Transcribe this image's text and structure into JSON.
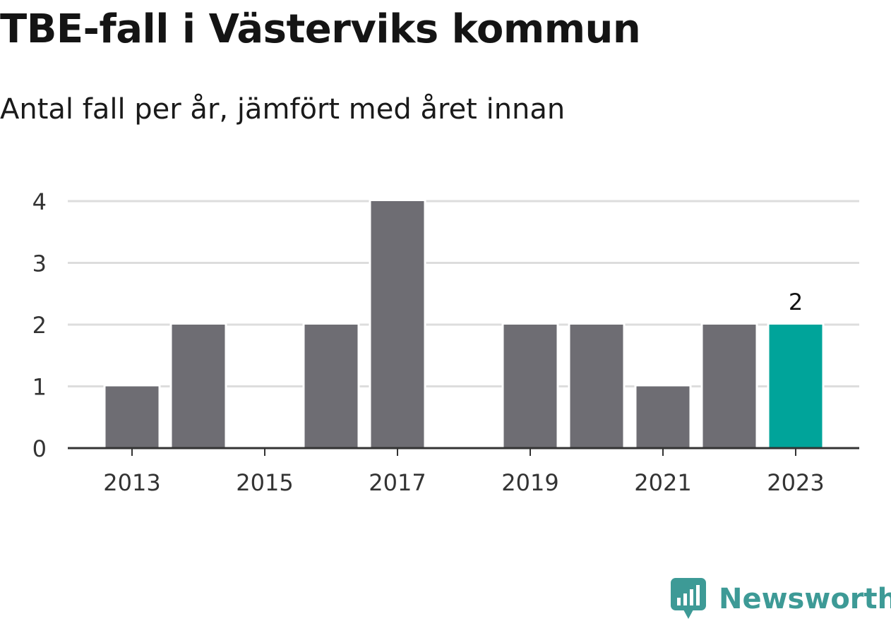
{
  "chart_data": {
    "type": "bar",
    "title": "TBE-fall i Västerviks kommun",
    "subtitle": "Antal fall per år, jämfört med året innan",
    "xlabel": "",
    "ylabel": "",
    "categories": [
      2013,
      2014,
      2015,
      2016,
      2017,
      2018,
      2019,
      2020,
      2021,
      2022,
      2023
    ],
    "values": [
      1,
      2,
      0,
      2,
      4,
      0,
      2,
      2,
      1,
      2,
      2
    ],
    "x_tick_labels": [
      "2013",
      "2015",
      "2017",
      "2019",
      "2021",
      "2023"
    ],
    "y_ticks": [
      0,
      1,
      2,
      3,
      4
    ],
    "ylim": [
      0,
      4
    ],
    "grid": true,
    "highlight_category": 2023,
    "highlight_label": "2",
    "colors": {
      "bar": "#6e6d73",
      "highlight": "#00a49a",
      "grid": "#dddddd",
      "axis": "#333333"
    }
  },
  "brand": {
    "name": "Newsworthy",
    "color": "#3d9a96"
  }
}
